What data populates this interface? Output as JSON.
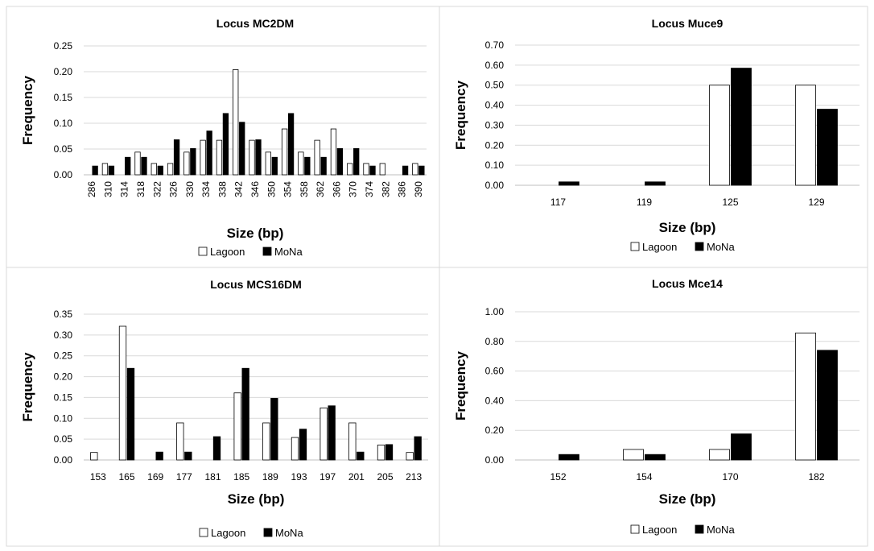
{
  "chart_data": [
    {
      "type": "bar",
      "title": "Locus MC2DM",
      "xlabel": "Size (bp)",
      "ylabel": "Frequency",
      "ylim": [
        0,
        0.25
      ],
      "yticks": [
        "0.00",
        "0.05",
        "0.10",
        "0.15",
        "0.20",
        "0.25"
      ],
      "categories": [
        "286",
        "310",
        "314",
        "318",
        "322",
        "326",
        "330",
        "334",
        "338",
        "342",
        "346",
        "350",
        "354",
        "358",
        "362",
        "366",
        "370",
        "374",
        "382",
        "386",
        "390"
      ],
      "series": [
        {
          "name": "Lagoon",
          "color": "#ffffff",
          "values": [
            0,
            0.022,
            0,
            0.044,
            0.022,
            0.022,
            0.044,
            0.067,
            0.067,
            0.204,
            0.067,
            0.044,
            0.089,
            0.044,
            0.067,
            0.089,
            0.022,
            0.022,
            0.022,
            0,
            0.022
          ]
        },
        {
          "name": "MoNa",
          "color": "#000000",
          "values": [
            0.017,
            0.017,
            0.034,
            0.034,
            0.017,
            0.068,
            0.051,
            0.085,
            0.119,
            0.102,
            0.068,
            0.034,
            0.119,
            0.034,
            0.034,
            0.051,
            0.051,
            0.017,
            0,
            0.017,
            0.017
          ]
        }
      ],
      "grid": true,
      "legend_position": "bottom",
      "x_ticks_rotated": true
    },
    {
      "type": "bar",
      "title": "Locus Muce9",
      "xlabel": "Size (bp)",
      "ylabel": "Frequency",
      "ylim": [
        0,
        0.7
      ],
      "yticks": [
        "0.00",
        "0.10",
        "0.20",
        "0.30",
        "0.40",
        "0.50",
        "0.60",
        "0.70"
      ],
      "categories": [
        "117",
        "119",
        "125",
        "129"
      ],
      "series": [
        {
          "name": "Lagoon",
          "color": "#ffffff",
          "values": [
            0,
            0,
            0.5,
            0.5
          ]
        },
        {
          "name": "MoNa",
          "color": "#000000",
          "values": [
            0.017,
            0.017,
            0.585,
            0.38
          ]
        }
      ],
      "grid": true,
      "legend_position": "bottom",
      "x_ticks_rotated": false
    },
    {
      "type": "bar",
      "title": "Locus MCS16DM",
      "xlabel": "Size (bp)",
      "ylabel": "Frequency",
      "ylim": [
        0,
        0.35
      ],
      "yticks": [
        "0.00",
        "0.05",
        "0.10",
        "0.15",
        "0.20",
        "0.25",
        "0.30",
        "0.35"
      ],
      "categories": [
        "153",
        "165",
        "169",
        "177",
        "181",
        "185",
        "189",
        "193",
        "197",
        "201",
        "205",
        "213"
      ],
      "series": [
        {
          "name": "Lagoon",
          "color": "#ffffff",
          "values": [
            0.018,
            0.321,
            0,
            0.089,
            0,
            0.161,
            0.089,
            0.054,
            0.125,
            0.089,
            0.036,
            0.018
          ]
        },
        {
          "name": "MoNa",
          "color": "#000000",
          "values": [
            0,
            0.22,
            0.019,
            0.019,
            0.056,
            0.22,
            0.148,
            0.074,
            0.13,
            0.019,
            0.037,
            0.056
          ]
        }
      ],
      "grid": true,
      "legend_position": "bottom",
      "x_ticks_rotated": false
    },
    {
      "type": "bar",
      "title": "Locus Mce14",
      "xlabel": "Size (bp)",
      "ylabel": "Frequency",
      "ylim": [
        0,
        1.0
      ],
      "yticks": [
        "0.00",
        "0.20",
        "0.40",
        "0.60",
        "0.80",
        "1.00"
      ],
      "categories": [
        "152",
        "154",
        "170",
        "182"
      ],
      "series": [
        {
          "name": "Lagoon",
          "color": "#ffffff",
          "values": [
            0,
            0.071,
            0.071,
            0.857
          ]
        },
        {
          "name": "MoNa",
          "color": "#000000",
          "values": [
            0.037,
            0.037,
            0.176,
            0.74
          ]
        }
      ],
      "grid": true,
      "legend_position": "bottom",
      "x_ticks_rotated": false
    }
  ]
}
